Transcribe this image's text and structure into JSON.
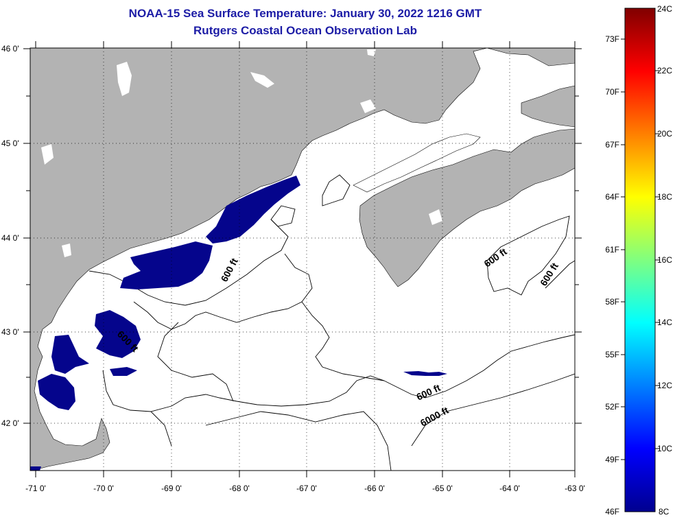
{
  "title_line1": "NOAA-15 Sea Surface Temperature:  January 30, 2022 1216 GMT",
  "title_line2": "Rutgers Coastal Ocean Observation Lab",
  "colors": {
    "land": "#b3b3b3",
    "cold_sst": "#05058c",
    "frame": "#000000"
  },
  "y_labels": [
    "46 0'",
    "45 0'",
    "44 0'",
    "43 0'",
    "42 0'"
  ],
  "x_labels": [
    "-71 0'",
    "-70 0'",
    "-69 0'",
    "-68 0'",
    "-67 0'",
    "-66 0'",
    "-65 0'",
    "-64 0'",
    "-63 0'"
  ],
  "contour_labels": [
    "600 ft",
    "600 ft",
    "600 ft",
    "600 ft",
    "600 ft",
    "6000 ft"
  ],
  "colorbar": {
    "fahrenheit": [
      "73F",
      "70F",
      "67F",
      "64F",
      "61F",
      "58F",
      "55F",
      "52F",
      "49F",
      "46F"
    ],
    "celsius": [
      "24C",
      "22C",
      "20C",
      "18C",
      "16C",
      "14C",
      "12C",
      "10C",
      "8C"
    ]
  }
}
